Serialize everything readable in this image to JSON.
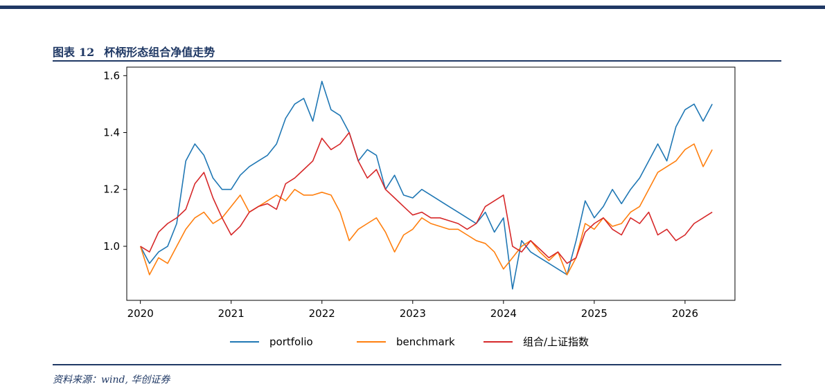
{
  "header": {
    "figure_prefix": "图表",
    "figure_number": "12",
    "figure_title": "杯柄形态组合净值走势"
  },
  "footer": {
    "source": "资料来源：wind, 华创证券"
  },
  "colors": {
    "accent": "#1f3864",
    "portfolio": "#1f77b4",
    "benchmark": "#ff7f0e",
    "index": "#d62728"
  },
  "chart_data": {
    "type": "line",
    "title": "",
    "xlabel": "",
    "ylabel": "",
    "xlim": [
      2019.85,
      2026.55
    ],
    "ylim": [
      0.81,
      1.63
    ],
    "x_ticks": [
      2020,
      2021,
      2022,
      2023,
      2024,
      2025,
      2026
    ],
    "x_tick_labels": [
      "2020",
      "2021",
      "2022",
      "2023",
      "2024",
      "2025",
      "2026"
    ],
    "y_ticks": [
      1.0,
      1.2,
      1.4,
      1.6
    ],
    "y_tick_labels": [
      "1.0",
      "1.2",
      "1.4",
      "1.6"
    ],
    "grid": false,
    "legend_position": "bottom",
    "x": [
      2020.0,
      2020.1,
      2020.2,
      2020.3,
      2020.4,
      2020.5,
      2020.6,
      2020.7,
      2020.8,
      2020.9,
      2021.0,
      2021.1,
      2021.2,
      2021.3,
      2021.4,
      2021.5,
      2021.6,
      2021.7,
      2021.8,
      2021.9,
      2022.0,
      2022.1,
      2022.2,
      2022.3,
      2022.4,
      2022.5,
      2022.6,
      2022.7,
      2022.8,
      2022.9,
      2023.0,
      2023.1,
      2023.2,
      2023.3,
      2023.4,
      2023.5,
      2023.6,
      2023.7,
      2023.8,
      2023.9,
      2024.0,
      2024.1,
      2024.2,
      2024.3,
      2024.4,
      2024.5,
      2024.6,
      2024.7,
      2024.8,
      2024.9,
      2025.0,
      2025.1,
      2025.2,
      2025.3,
      2025.4,
      2025.5,
      2025.6,
      2025.7,
      2025.8,
      2025.9,
      2026.0,
      2026.1,
      2026.2,
      2026.3
    ],
    "series": [
      {
        "name": "portfolio",
        "values": [
          1.0,
          0.94,
          0.98,
          1.0,
          1.08,
          1.3,
          1.36,
          1.32,
          1.24,
          1.2,
          1.2,
          1.25,
          1.28,
          1.3,
          1.32,
          1.36,
          1.45,
          1.5,
          1.52,
          1.44,
          1.58,
          1.48,
          1.46,
          1.4,
          1.3,
          1.34,
          1.32,
          1.2,
          1.25,
          1.18,
          1.17,
          1.2,
          1.18,
          1.16,
          1.14,
          1.12,
          1.1,
          1.08,
          1.12,
          1.05,
          1.1,
          0.85,
          1.02,
          0.98,
          0.96,
          0.94,
          0.92,
          0.9,
          1.02,
          1.16,
          1.1,
          1.14,
          1.2,
          1.15,
          1.2,
          1.24,
          1.3,
          1.36,
          1.3,
          1.42,
          1.48,
          1.5,
          1.44,
          1.5
        ]
      },
      {
        "name": "benchmark",
        "values": [
          1.0,
          0.9,
          0.96,
          0.94,
          1.0,
          1.06,
          1.1,
          1.12,
          1.08,
          1.1,
          1.14,
          1.18,
          1.12,
          1.14,
          1.16,
          1.18,
          1.16,
          1.2,
          1.18,
          1.18,
          1.19,
          1.18,
          1.12,
          1.02,
          1.06,
          1.08,
          1.1,
          1.05,
          0.98,
          1.04,
          1.06,
          1.1,
          1.08,
          1.07,
          1.06,
          1.06,
          1.04,
          1.02,
          1.01,
          0.98,
          0.92,
          0.96,
          1.0,
          1.02,
          0.98,
          0.95,
          0.98,
          0.9,
          0.96,
          1.08,
          1.06,
          1.1,
          1.07,
          1.08,
          1.12,
          1.14,
          1.2,
          1.26,
          1.28,
          1.3,
          1.34,
          1.36,
          1.28,
          1.34
        ]
      },
      {
        "name": "组合/上证指数",
        "values": [
          1.0,
          0.98,
          1.05,
          1.08,
          1.1,
          1.13,
          1.22,
          1.26,
          1.17,
          1.1,
          1.04,
          1.07,
          1.12,
          1.14,
          1.15,
          1.13,
          1.22,
          1.24,
          1.27,
          1.3,
          1.38,
          1.34,
          1.36,
          1.4,
          1.3,
          1.24,
          1.27,
          1.2,
          1.17,
          1.14,
          1.11,
          1.12,
          1.1,
          1.1,
          1.09,
          1.08,
          1.06,
          1.08,
          1.14,
          1.16,
          1.18,
          1.0,
          0.98,
          1.02,
          0.99,
          0.96,
          0.98,
          0.94,
          0.96,
          1.05,
          1.08,
          1.1,
          1.06,
          1.04,
          1.1,
          1.08,
          1.12,
          1.04,
          1.06,
          1.02,
          1.04,
          1.08,
          1.1,
          1.12
        ]
      }
    ]
  }
}
